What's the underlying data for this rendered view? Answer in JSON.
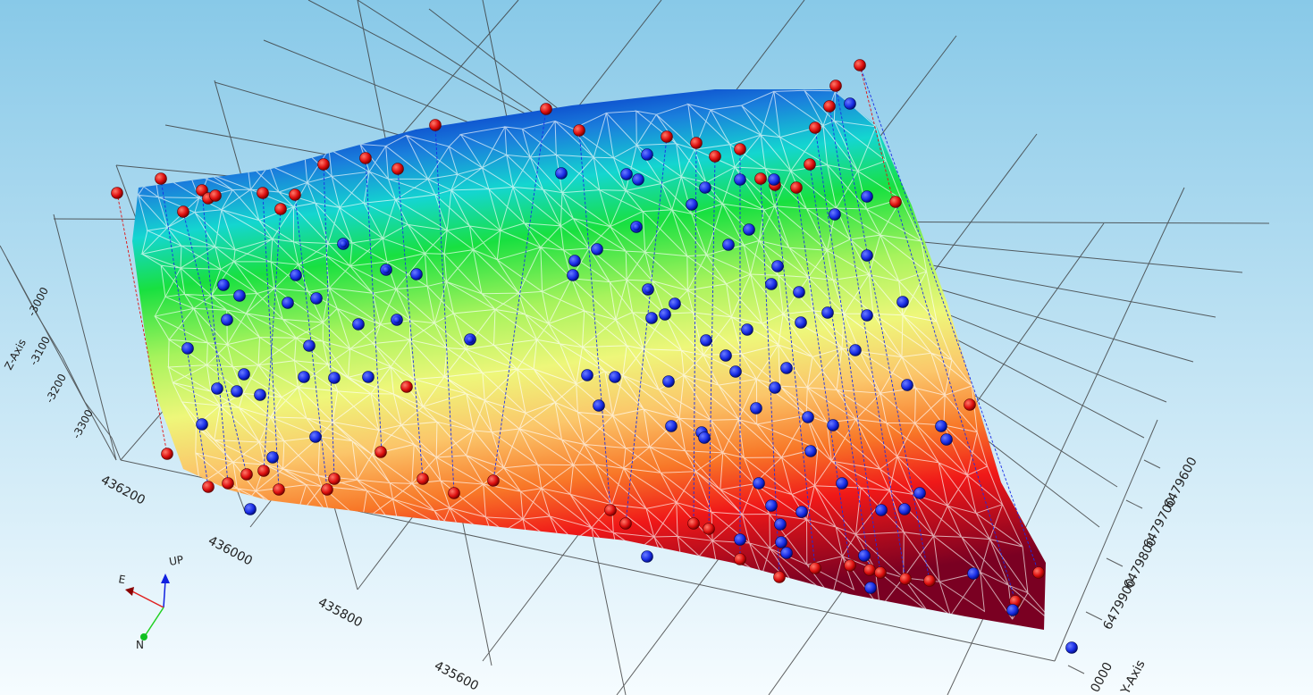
{
  "viewer": {
    "x_ticks": [
      "436200",
      "436000",
      "435800",
      "435600"
    ],
    "y_ticks": [
      "6479600",
      "6479700",
      "6479800",
      "6479900",
      "0000"
    ],
    "y_axis_label": "Y-Axis",
    "z_ticks": [
      "-3000",
      "-3100",
      "-3200",
      "-3300"
    ],
    "z_axis_label": "Z-Axis",
    "compass": {
      "up": "UP",
      "east": "E",
      "north": "N"
    },
    "colors": {
      "sky_top": "#8ccbe8",
      "sky_bottom": "#f4fbfe",
      "surface_low": "#7a0020",
      "surface_mid": "#f3f47a",
      "surface_high": "#0a3fd0",
      "marker_red": "#e01010",
      "marker_blue": "#1530e0"
    }
  }
}
